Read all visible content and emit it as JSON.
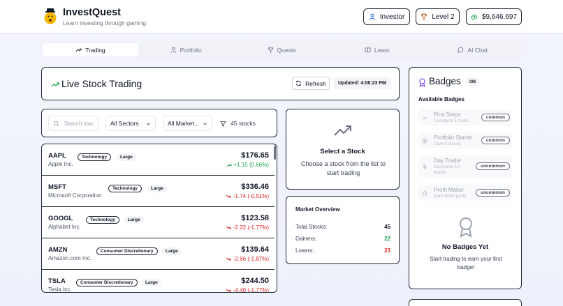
{
  "app": {
    "title": "InvestQuest",
    "subtitle": "Learn investing through gaming"
  },
  "header": {
    "role": "Investor",
    "level": "Level 2",
    "balance": "$9,646.697"
  },
  "tabs": [
    {
      "label": "Trading",
      "active": true,
      "icon": "trend-up-icon"
    },
    {
      "label": "Portfolio",
      "active": false,
      "icon": "user-icon"
    },
    {
      "label": "Quests",
      "active": false,
      "icon": "trophy-icon"
    },
    {
      "label": "Learn",
      "active": false,
      "icon": "book-icon"
    },
    {
      "label": "AI Chat",
      "active": false,
      "icon": "chat-icon"
    }
  ],
  "live": {
    "title": "Live Stock Trading",
    "refresh_label": "Refresh",
    "updated": "Updated: 4:08:23 PM"
  },
  "filters": {
    "search_placeholder": "Search stoc",
    "sector": "All Sectors",
    "market": "All Market...",
    "count": "45 stocks"
  },
  "stocks": [
    {
      "symbol": "AAPL",
      "name": "Apple Inc.",
      "sector": "Technology",
      "size": "Large",
      "price": "$176.65",
      "change": "+1.15 (0.66%)",
      "direction": "up"
    },
    {
      "symbol": "MSFT",
      "name": "Microsoft Corporation",
      "sector": "Technology",
      "size": "Large",
      "price": "$336.46",
      "change": "-1.74 (-0.51%)",
      "direction": "down"
    },
    {
      "symbol": "GOOGL",
      "name": "Alphabet Inc.",
      "sector": "Technology",
      "size": "Large",
      "price": "$123.58",
      "change": "-2.22 (-1.77%)",
      "direction": "down"
    },
    {
      "symbol": "AMZN",
      "name": "Amazon.com Inc.",
      "sector": "Consumer Discretionary",
      "size": "Large",
      "price": "$139.64",
      "change": "-2.66 (-1.87%)",
      "direction": "down"
    },
    {
      "symbol": "TSLA",
      "name": "Tesla Inc.",
      "sector": "Consumer Discretionary",
      "size": "Large",
      "price": "$244.50",
      "change": "-4.40 (-1.77%)",
      "direction": "down"
    }
  ],
  "select_panel": {
    "title": "Select a Stock",
    "description": "Choose a stock from the list to start trading"
  },
  "market": {
    "title": "Market Overview",
    "rows": [
      {
        "label": "Total Stocks:",
        "value": "45"
      },
      {
        "label": "Gainers:",
        "value": "22"
      },
      {
        "label": "Losers:",
        "value": "23"
      }
    ]
  },
  "badges": {
    "title": "Badges",
    "count": "0/8",
    "available_title": "Available Badges",
    "items": [
      {
        "name": "First Steps",
        "desc": "Complete 1 trade",
        "rarity": "common"
      },
      {
        "name": "Portfolio Starter",
        "desc": "Own 3 stocks",
        "rarity": "common"
      },
      {
        "name": "Day Trader",
        "desc": "Complete 10 trades",
        "rarity": "uncommon"
      },
      {
        "name": "Profit Maker",
        "desc": "Earn $500 profit",
        "rarity": "uncommon"
      }
    ],
    "empty_title": "No Badges Yet",
    "empty_desc": "Start trading to earn your first badge!"
  },
  "colors": {
    "gain": "#16a34a",
    "loss": "#dc2626",
    "badge_accent": "#7c3aed",
    "balance_icon": "#16a34a",
    "level_icon": "#b45309"
  }
}
